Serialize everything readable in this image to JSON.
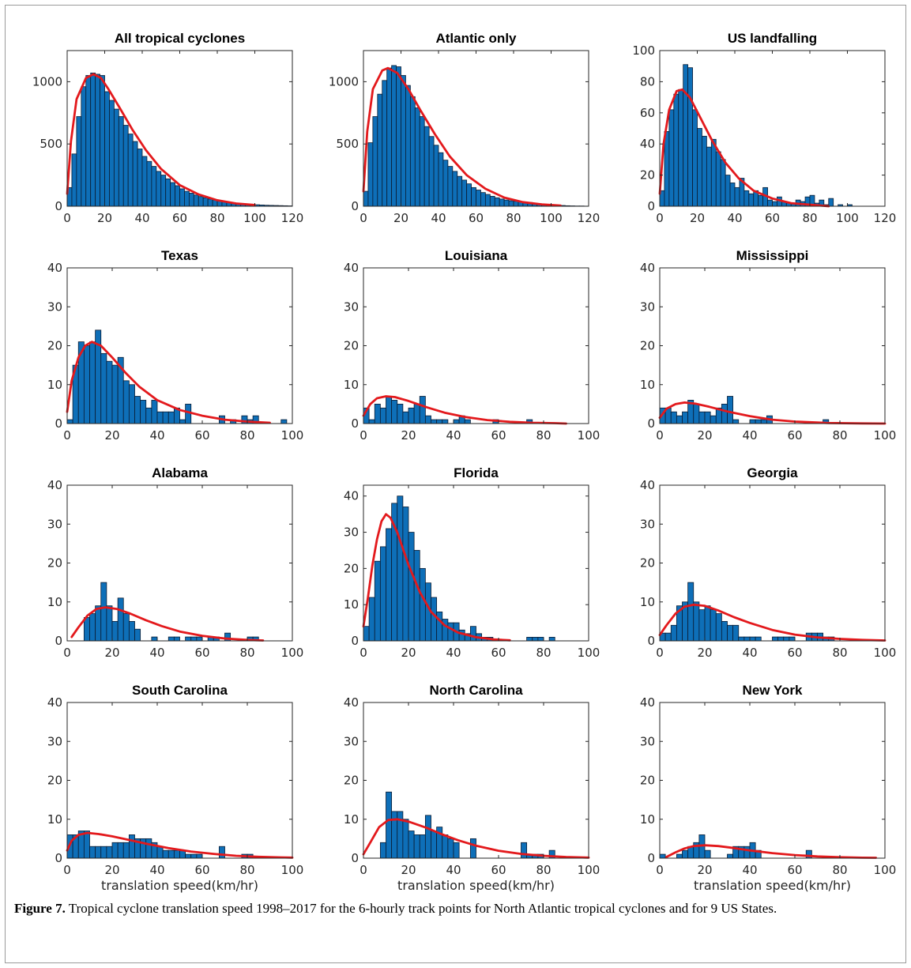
{
  "chart_data": [
    {
      "type": "bar",
      "title": "All tropical cyclones",
      "xlim": [
        0,
        120
      ],
      "ylim": [
        0,
        1250
      ],
      "xticks": [
        0,
        20,
        40,
        60,
        80,
        100,
        120
      ],
      "yticks": [
        0,
        500,
        1000
      ],
      "xlabel": "",
      "binwidth": 2.5,
      "values": [
        150,
        420,
        720,
        960,
        1050,
        1070,
        1060,
        1050,
        920,
        850,
        780,
        720,
        650,
        580,
        520,
        460,
        400,
        360,
        320,
        280,
        250,
        220,
        190,
        165,
        140,
        120,
        105,
        90,
        78,
        68,
        58,
        50,
        43,
        37,
        32,
        27,
        23,
        20,
        17,
        14,
        12,
        10,
        8,
        7,
        6,
        5,
        4,
        3
      ],
      "fit": [
        [
          0,
          100
        ],
        [
          2,
          520
        ],
        [
          5,
          860
        ],
        [
          10,
          1030
        ],
        [
          14,
          1060
        ],
        [
          18,
          1030
        ],
        [
          22,
          940
        ],
        [
          28,
          790
        ],
        [
          35,
          610
        ],
        [
          42,
          450
        ],
        [
          50,
          300
        ],
        [
          60,
          170
        ],
        [
          70,
          95
        ],
        [
          80,
          48
        ],
        [
          90,
          22
        ],
        [
          100,
          10
        ]
      ]
    },
    {
      "type": "bar",
      "title": "Atlantic only",
      "xlim": [
        0,
        120
      ],
      "ylim": [
        0,
        1250
      ],
      "xticks": [
        0,
        20,
        40,
        60,
        80,
        100,
        120
      ],
      "yticks": [
        0,
        500,
        1000
      ],
      "xlabel": "",
      "binwidth": 2.5,
      "values": [
        120,
        510,
        720,
        900,
        1010,
        1110,
        1130,
        1120,
        1050,
        970,
        880,
        790,
        720,
        640,
        560,
        490,
        430,
        370,
        320,
        280,
        240,
        210,
        180,
        150,
        130,
        110,
        95,
        80,
        68,
        58,
        50,
        44,
        40,
        36,
        33,
        30,
        25,
        20,
        16,
        12,
        10,
        8,
        6,
        4,
        3,
        2,
        2,
        1
      ],
      "fit": [
        [
          0,
          120
        ],
        [
          2,
          600
        ],
        [
          5,
          940
        ],
        [
          10,
          1090
        ],
        [
          13,
          1110
        ],
        [
          18,
          1070
        ],
        [
          24,
          940
        ],
        [
          30,
          780
        ],
        [
          38,
          580
        ],
        [
          46,
          400
        ],
        [
          55,
          250
        ],
        [
          65,
          140
        ],
        [
          75,
          70
        ],
        [
          85,
          33
        ],
        [
          95,
          15
        ],
        [
          105,
          6
        ]
      ]
    },
    {
      "type": "bar",
      "title": "US landfalling",
      "xlim": [
        0,
        120
      ],
      "ylim": [
        0,
        100
      ],
      "xticks": [
        0,
        20,
        40,
        60,
        80,
        100,
        120
      ],
      "yticks": [
        0,
        20,
        40,
        60,
        80,
        100
      ],
      "xlabel": "",
      "binwidth": 2.5,
      "values": [
        10,
        48,
        62,
        72,
        75,
        91,
        89,
        62,
        50,
        45,
        38,
        43,
        35,
        30,
        20,
        15,
        12,
        18,
        10,
        8,
        10,
        7,
        12,
        4,
        3,
        6,
        3,
        2,
        2,
        4,
        3,
        6,
        7,
        2,
        4,
        1,
        5,
        0,
        1,
        0,
        1,
        0,
        0,
        0,
        0,
        0,
        0,
        0
      ],
      "fit": [
        [
          0,
          8
        ],
        [
          2,
          40
        ],
        [
          5,
          62
        ],
        [
          9,
          74
        ],
        [
          12,
          75
        ],
        [
          16,
          70
        ],
        [
          22,
          56
        ],
        [
          28,
          42
        ],
        [
          35,
          28
        ],
        [
          42,
          18
        ],
        [
          50,
          10
        ],
        [
          60,
          5
        ],
        [
          70,
          2
        ],
        [
          80,
          1
        ],
        [
          90,
          0
        ]
      ]
    },
    {
      "type": "bar",
      "title": "Texas",
      "xlim": [
        0,
        100
      ],
      "ylim": [
        0,
        40
      ],
      "xticks": [
        0,
        20,
        40,
        60,
        80,
        100
      ],
      "yticks": [
        0,
        10,
        20,
        30,
        40
      ],
      "xlabel": "",
      "binwidth": 2.5,
      "values": [
        1,
        15,
        21,
        20,
        21,
        24,
        18,
        16,
        15,
        17,
        11,
        10,
        7,
        6,
        4,
        6,
        3,
        3,
        3,
        4,
        1,
        5,
        0,
        0,
        0,
        0,
        0,
        2,
        0,
        1,
        0,
        2,
        1,
        2,
        0,
        0,
        0,
        0,
        1,
        0
      ],
      "fit": [
        [
          0,
          3
        ],
        [
          2,
          11
        ],
        [
          5,
          17
        ],
        [
          8,
          20
        ],
        [
          11,
          21
        ],
        [
          15,
          20
        ],
        [
          20,
          17
        ],
        [
          26,
          13
        ],
        [
          32,
          9.5
        ],
        [
          40,
          6
        ],
        [
          50,
          3.5
        ],
        [
          60,
          2
        ],
        [
          70,
          1
        ],
        [
          80,
          0.5
        ],
        [
          90,
          0.2
        ]
      ]
    },
    {
      "type": "bar",
      "title": "Louisiana",
      "xlim": [
        0,
        100
      ],
      "ylim": [
        0,
        40
      ],
      "xticks": [
        0,
        20,
        40,
        60,
        80,
        100
      ],
      "yticks": [
        0,
        10,
        20,
        30,
        40
      ],
      "xlabel": "",
      "binwidth": 2.5,
      "values": [
        4,
        1,
        5,
        4,
        7,
        6,
        5,
        3,
        4,
        5,
        7,
        2,
        1,
        1,
        1,
        0,
        1,
        2,
        1,
        0,
        0,
        0,
        0,
        1,
        0,
        0,
        0,
        0,
        0,
        1,
        0,
        0,
        0,
        0,
        0,
        0,
        0,
        0,
        0,
        0
      ],
      "fit": [
        [
          0,
          2
        ],
        [
          3,
          5
        ],
        [
          6,
          6.5
        ],
        [
          10,
          7
        ],
        [
          14,
          6.8
        ],
        [
          20,
          5.8
        ],
        [
          28,
          4.2
        ],
        [
          36,
          2.8
        ],
        [
          45,
          1.7
        ],
        [
          55,
          0.9
        ],
        [
          65,
          0.45
        ],
        [
          75,
          0.2
        ],
        [
          85,
          0.1
        ],
        [
          90,
          0
        ]
      ]
    },
    {
      "type": "bar",
      "title": "Mississippi",
      "xlim": [
        0,
        100
      ],
      "ylim": [
        0,
        40
      ],
      "xticks": [
        0,
        20,
        40,
        60,
        80,
        100
      ],
      "yticks": [
        0,
        10,
        20,
        30,
        40
      ],
      "xlabel": "",
      "binwidth": 2.5,
      "values": [
        4,
        4,
        3,
        2,
        3,
        6,
        5,
        3,
        3,
        2,
        4,
        5,
        7,
        1,
        0,
        0,
        1,
        1,
        1,
        2,
        0,
        0,
        0,
        0,
        0,
        0,
        0,
        0,
        0,
        1,
        0,
        0,
        0,
        0,
        0,
        0,
        0,
        0,
        0,
        0
      ],
      "fit": [
        [
          0,
          1.5
        ],
        [
          3,
          3.8
        ],
        [
          7,
          5
        ],
        [
          11,
          5.4
        ],
        [
          16,
          5.1
        ],
        [
          22,
          4.3
        ],
        [
          30,
          3.1
        ],
        [
          40,
          1.9
        ],
        [
          50,
          1
        ],
        [
          60,
          0.5
        ],
        [
          75,
          0.15
        ],
        [
          90,
          0.05
        ],
        [
          100,
          0
        ]
      ]
    },
    {
      "type": "bar",
      "title": "Alabama",
      "xlim": [
        0,
        100
      ],
      "ylim": [
        0,
        40
      ],
      "xticks": [
        0,
        20,
        40,
        60,
        80,
        100
      ],
      "yticks": [
        0,
        10,
        20,
        30,
        40
      ],
      "xlabel": "",
      "binwidth": 2.5,
      "values": [
        0,
        0,
        0,
        6,
        7,
        9,
        15,
        9,
        5,
        11,
        7,
        5,
        3,
        0,
        0,
        1,
        0,
        0,
        1,
        1,
        0,
        1,
        1,
        1,
        0,
        1,
        1,
        0,
        2,
        0,
        0,
        0,
        1,
        1,
        0,
        0,
        0,
        0,
        0,
        0
      ],
      "fit": [
        [
          2,
          1
        ],
        [
          5,
          3.5
        ],
        [
          9,
          6.5
        ],
        [
          13,
          8.2
        ],
        [
          17,
          8.6
        ],
        [
          22,
          8.2
        ],
        [
          28,
          7
        ],
        [
          35,
          5.3
        ],
        [
          42,
          3.8
        ],
        [
          50,
          2.4
        ],
        [
          60,
          1.3
        ],
        [
          70,
          0.6
        ],
        [
          80,
          0.25
        ],
        [
          87,
          0.1
        ]
      ]
    },
    {
      "type": "bar",
      "title": "Florida",
      "xlim": [
        0,
        100
      ],
      "ylim": [
        0,
        43
      ],
      "xticks": [
        0,
        20,
        40,
        60,
        80,
        100
      ],
      "yticks": [
        0,
        10,
        20,
        30,
        40
      ],
      "xlabel": "",
      "binwidth": 2.5,
      "values": [
        4,
        12,
        22,
        26,
        31,
        38,
        40,
        37,
        30,
        25,
        20,
        16,
        12,
        8,
        6,
        5,
        5,
        3,
        2,
        4,
        2,
        1,
        1,
        0,
        0,
        0,
        0,
        0,
        0,
        1,
        1,
        1,
        0,
        1,
        0,
        0,
        0,
        0,
        0,
        0
      ],
      "fit": [
        [
          0,
          4
        ],
        [
          2,
          12
        ],
        [
          4,
          21
        ],
        [
          6,
          28
        ],
        [
          8,
          33
        ],
        [
          10,
          35
        ],
        [
          12,
          34
        ],
        [
          15,
          30
        ],
        [
          20,
          21
        ],
        [
          25,
          13.5
        ],
        [
          30,
          8
        ],
        [
          36,
          4.3
        ],
        [
          42,
          2.3
        ],
        [
          50,
          1
        ],
        [
          58,
          0.4
        ],
        [
          65,
          0.15
        ]
      ]
    },
    {
      "type": "bar",
      "title": "Georgia",
      "xlim": [
        0,
        100
      ],
      "ylim": [
        0,
        40
      ],
      "xticks": [
        0,
        20,
        40,
        60,
        80,
        100
      ],
      "yticks": [
        0,
        10,
        20,
        30,
        40
      ],
      "xlabel": "",
      "binwidth": 2.5,
      "values": [
        2,
        2,
        4,
        9,
        10,
        15,
        10,
        8,
        9,
        8,
        7,
        5,
        4,
        4,
        1,
        1,
        1,
        1,
        0,
        0,
        1,
        1,
        1,
        1,
        0,
        0,
        2,
        2,
        2,
        1,
        1,
        0,
        0,
        0,
        0,
        0,
        0,
        0,
        0,
        0
      ],
      "fit": [
        [
          0,
          1.5
        ],
        [
          3,
          4
        ],
        [
          7,
          7
        ],
        [
          11,
          8.8
        ],
        [
          15,
          9.3
        ],
        [
          20,
          9
        ],
        [
          26,
          7.8
        ],
        [
          33,
          6.1
        ],
        [
          40,
          4.6
        ],
        [
          50,
          2.8
        ],
        [
          60,
          1.6
        ],
        [
          70,
          0.9
        ],
        [
          80,
          0.5
        ],
        [
          90,
          0.25
        ],
        [
          100,
          0.1
        ]
      ]
    },
    {
      "type": "bar",
      "title": "South Carolina",
      "xlim": [
        0,
        100
      ],
      "ylim": [
        0,
        40
      ],
      "xticks": [
        0,
        20,
        40,
        60,
        80,
        100
      ],
      "yticks": [
        0,
        10,
        20,
        30,
        40
      ],
      "xlabel": "translation speed(km/hr)",
      "binwidth": 2.5,
      "values": [
        6,
        6,
        7,
        7,
        3,
        3,
        3,
        3,
        4,
        4,
        4,
        6,
        5,
        5,
        5,
        4,
        3,
        2,
        2,
        2,
        2,
        1,
        1,
        1,
        0,
        0,
        0,
        3,
        0,
        0,
        0,
        1,
        1,
        0,
        0,
        0,
        0,
        0,
        0,
        0
      ],
      "fit": [
        [
          0,
          2
        ],
        [
          2,
          4.5
        ],
        [
          5,
          6
        ],
        [
          9,
          6.5
        ],
        [
          14,
          6.2
        ],
        [
          20,
          5.6
        ],
        [
          28,
          4.6
        ],
        [
          36,
          3.6
        ],
        [
          45,
          2.6
        ],
        [
          55,
          1.7
        ],
        [
          65,
          1.1
        ],
        [
          75,
          0.6
        ],
        [
          85,
          0.35
        ],
        [
          95,
          0.2
        ],
        [
          100,
          0.15
        ]
      ]
    },
    {
      "type": "bar",
      "title": "North Carolina",
      "xlim": [
        0,
        100
      ],
      "ylim": [
        0,
        40
      ],
      "xticks": [
        0,
        20,
        40,
        60,
        80,
        100
      ],
      "yticks": [
        0,
        10,
        20,
        30,
        40
      ],
      "xlabel": "translation speed(km/hr)",
      "binwidth": 2.5,
      "values": [
        0,
        0,
        0,
        4,
        17,
        12,
        12,
        10,
        7,
        6,
        6,
        11,
        7,
        8,
        6,
        5,
        4,
        0,
        0,
        5,
        0,
        0,
        0,
        0,
        0,
        0,
        0,
        0,
        4,
        1,
        1,
        1,
        0,
        2,
        0,
        0,
        0,
        0,
        0,
        0
      ],
      "fit": [
        [
          0,
          1
        ],
        [
          3,
          4
        ],
        [
          7,
          8
        ],
        [
          11,
          9.8
        ],
        [
          15,
          10
        ],
        [
          20,
          9.4
        ],
        [
          28,
          7.8
        ],
        [
          35,
          6.1
        ],
        [
          42,
          4.6
        ],
        [
          50,
          3.2
        ],
        [
          60,
          1.9
        ],
        [
          70,
          1.1
        ],
        [
          80,
          0.6
        ],
        [
          90,
          0.3
        ],
        [
          100,
          0.15
        ]
      ]
    },
    {
      "type": "bar",
      "title": "New York",
      "xlim": [
        0,
        100
      ],
      "ylim": [
        0,
        40
      ],
      "xticks": [
        0,
        20,
        40,
        60,
        80,
        100
      ],
      "yticks": [
        0,
        10,
        20,
        30,
        40
      ],
      "xlabel": "translation speed(km/hr)",
      "binwidth": 2.5,
      "values": [
        1,
        0,
        0,
        1,
        2,
        3,
        4,
        6,
        2,
        0,
        0,
        0,
        1,
        3,
        3,
        3,
        4,
        2,
        0,
        0,
        0,
        0,
        0,
        0,
        0,
        0,
        2,
        0,
        0,
        0,
        0,
        0,
        0,
        0,
        0,
        0,
        0,
        0,
        0,
        0
      ],
      "fit": [
        [
          3,
          0.3
        ],
        [
          7,
          1.5
        ],
        [
          11,
          2.5
        ],
        [
          15,
          3.1
        ],
        [
          20,
          3.3
        ],
        [
          26,
          3.1
        ],
        [
          33,
          2.6
        ],
        [
          40,
          2
        ],
        [
          50,
          1.3
        ],
        [
          60,
          0.8
        ],
        [
          70,
          0.45
        ],
        [
          80,
          0.25
        ],
        [
          90,
          0.13
        ],
        [
          96,
          0.1
        ]
      ]
    }
  ],
  "caption": {
    "label": "Figure 7.",
    "text": " Tropical cyclone translation speed 1998–2017 for the 6-hourly track points for North Atlantic tropical cyclones and for 9 US States."
  },
  "colors": {
    "bar_fill": "#0e6fb8",
    "bar_edge": "#0a1c33",
    "fit_line": "#e3191c",
    "axis": "#262626"
  }
}
